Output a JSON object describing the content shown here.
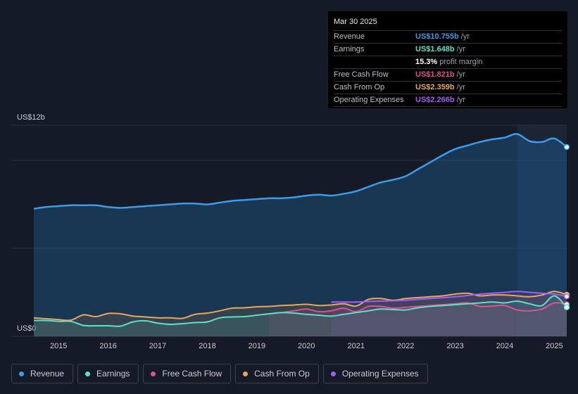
{
  "tooltip": {
    "date": "Mar 30 2025",
    "rows": [
      {
        "label": "Revenue",
        "value": "US$10.755b",
        "unit": "/yr",
        "color": "#3d9be9"
      },
      {
        "label": "Earnings",
        "value": "US$1.648b",
        "unit": "/yr",
        "color": "#5fe0c6"
      },
      {
        "label": "",
        "value": "15.3%",
        "unit": "profit margin",
        "color": "#ffffff"
      },
      {
        "label": "Free Cash Flow",
        "value": "US$1.821b",
        "unit": "/yr",
        "color": "#d9548f"
      },
      {
        "label": "Cash From Op",
        "value": "US$2.359b",
        "unit": "/yr",
        "color": "#e8a85c"
      },
      {
        "label": "Operating Expenses",
        "value": "US$2.266b",
        "unit": "/yr",
        "color": "#a55cf0"
      }
    ]
  },
  "legend": [
    {
      "label": "Revenue",
      "color": "#3d9be9"
    },
    {
      "label": "Earnings",
      "color": "#5fe0c6"
    },
    {
      "label": "Free Cash Flow",
      "color": "#d9548f"
    },
    {
      "label": "Cash From Op",
      "color": "#e8a85c"
    },
    {
      "label": "Operating Expenses",
      "color": "#a55cf0"
    }
  ],
  "chart_data": {
    "type": "area",
    "title": "",
    "ylabel_top": "US$12b",
    "ylabel_bottom": "US$0",
    "ylim": [
      0,
      12
    ],
    "xlim": [
      2014.5,
      2025.25
    ],
    "xticks": [
      {
        "label": "2015",
        "value": 2015
      },
      {
        "label": "2016",
        "value": 2016
      },
      {
        "label": "2017",
        "value": 2017
      },
      {
        "label": "2018",
        "value": 2018
      },
      {
        "label": "2019",
        "value": 2019
      },
      {
        "label": "2020",
        "value": 2020
      },
      {
        "label": "2021",
        "value": 2021
      },
      {
        "label": "2022",
        "value": 2022
      },
      {
        "label": "2023",
        "value": 2023
      },
      {
        "label": "2024",
        "value": 2024
      },
      {
        "label": "2025",
        "value": 2025
      }
    ],
    "highlight_from": 2024.25,
    "series": [
      {
        "name": "Revenue",
        "color": "#3d9be9",
        "x": [
          2014.5,
          2014.75,
          2015.0,
          2015.25,
          2015.5,
          2015.75,
          2016.0,
          2016.25,
          2016.5,
          2016.75,
          2017.0,
          2017.25,
          2017.5,
          2017.75,
          2018.0,
          2018.25,
          2018.5,
          2018.75,
          2019.0,
          2019.25,
          2019.5,
          2019.75,
          2020.0,
          2020.25,
          2020.5,
          2020.75,
          2021.0,
          2021.25,
          2021.5,
          2021.75,
          2022.0,
          2022.25,
          2022.5,
          2022.75,
          2023.0,
          2023.25,
          2023.5,
          2023.75,
          2024.0,
          2024.25,
          2024.5,
          2024.75,
          2025.0,
          2025.25
        ],
        "y": [
          7.25,
          7.35,
          7.4,
          7.45,
          7.45,
          7.45,
          7.35,
          7.3,
          7.35,
          7.4,
          7.45,
          7.5,
          7.55,
          7.55,
          7.5,
          7.6,
          7.7,
          7.75,
          7.8,
          7.85,
          7.85,
          7.9,
          8.0,
          8.05,
          8.0,
          8.1,
          8.25,
          8.5,
          8.75,
          8.9,
          9.1,
          9.5,
          9.9,
          10.3,
          10.65,
          10.85,
          11.05,
          11.2,
          11.3,
          11.5,
          11.1,
          11.05,
          11.25,
          10.76
        ]
      },
      {
        "name": "Earnings",
        "color": "#5fe0c6",
        "x": [
          2014.5,
          2014.75,
          2015.0,
          2015.25,
          2015.5,
          2015.75,
          2016.0,
          2016.25,
          2016.5,
          2016.75,
          2017.0,
          2017.25,
          2017.5,
          2017.75,
          2018.0,
          2018.25,
          2018.5,
          2018.75,
          2019.0,
          2019.25,
          2019.5,
          2019.75,
          2020.0,
          2020.25,
          2020.5,
          2020.75,
          2021.0,
          2021.25,
          2021.5,
          2021.75,
          2022.0,
          2022.25,
          2022.5,
          2022.75,
          2023.0,
          2023.25,
          2023.5,
          2023.75,
          2024.0,
          2024.25,
          2024.5,
          2024.75,
          2025.0,
          2025.25
        ],
        "y": [
          0.9,
          0.9,
          0.85,
          0.85,
          0.62,
          0.6,
          0.6,
          0.58,
          0.82,
          0.88,
          0.75,
          0.68,
          0.72,
          0.78,
          0.82,
          1.05,
          1.1,
          1.12,
          1.2,
          1.28,
          1.35,
          1.32,
          1.25,
          1.2,
          1.15,
          1.25,
          1.35,
          1.45,
          1.55,
          1.52,
          1.5,
          1.62,
          1.7,
          1.75,
          1.8,
          1.85,
          1.9,
          1.95,
          1.9,
          2.0,
          1.85,
          1.75,
          2.3,
          1.65
        ]
      },
      {
        "name": "Free Cash Flow",
        "color": "#d9548f",
        "x": [
          2019.25,
          2019.5,
          2019.75,
          2020.0,
          2020.25,
          2020.5,
          2020.75,
          2021.0,
          2021.25,
          2021.5,
          2021.75,
          2022.0,
          2022.25,
          2022.5,
          2022.75,
          2023.0,
          2023.25,
          2023.5,
          2023.75,
          2024.0,
          2024.25,
          2024.5,
          2024.75,
          2025.0,
          2025.25
        ],
        "y": [
          1.28,
          1.35,
          1.45,
          1.55,
          1.4,
          1.45,
          1.6,
          1.4,
          1.7,
          1.7,
          1.6,
          1.65,
          1.7,
          1.75,
          1.8,
          1.85,
          1.9,
          1.7,
          1.72,
          1.75,
          1.5,
          1.45,
          1.55,
          1.9,
          1.82
        ]
      },
      {
        "name": "Cash From Op",
        "color": "#e8a85c",
        "x": [
          2014.5,
          2014.75,
          2015.0,
          2015.25,
          2015.5,
          2015.75,
          2016.0,
          2016.25,
          2016.5,
          2016.75,
          2017.0,
          2017.25,
          2017.5,
          2017.75,
          2018.0,
          2018.25,
          2018.5,
          2018.75,
          2019.0,
          2019.25,
          2019.5,
          2019.75,
          2020.0,
          2020.25,
          2020.5,
          2020.75,
          2021.0,
          2021.25,
          2021.5,
          2021.75,
          2022.0,
          2022.25,
          2022.5,
          2022.75,
          2023.0,
          2023.25,
          2023.5,
          2023.75,
          2024.0,
          2024.25,
          2024.5,
          2024.75,
          2025.0,
          2025.25
        ],
        "y": [
          1.05,
          1.0,
          0.95,
          0.92,
          1.22,
          1.12,
          1.3,
          1.28,
          1.15,
          1.1,
          1.05,
          1.05,
          1.02,
          1.25,
          1.32,
          1.45,
          1.6,
          1.62,
          1.68,
          1.7,
          1.75,
          1.78,
          1.82,
          1.75,
          1.78,
          1.85,
          1.72,
          2.1,
          2.15,
          2.05,
          2.15,
          2.2,
          2.25,
          2.3,
          2.4,
          2.45,
          2.3,
          2.35,
          2.35,
          2.3,
          2.25,
          2.35,
          2.55,
          2.36
        ]
      },
      {
        "name": "Operating Expenses",
        "color": "#a55cf0",
        "x": [
          2020.5,
          2020.75,
          2021.0,
          2021.25,
          2021.5,
          2021.75,
          2022.0,
          2022.25,
          2022.5,
          2022.75,
          2023.0,
          2023.25,
          2023.5,
          2023.75,
          2024.0,
          2024.25,
          2024.5,
          2024.75,
          2025.0,
          2025.25
        ],
        "y": [
          1.95,
          1.95,
          1.95,
          1.98,
          2.0,
          2.02,
          2.05,
          2.1,
          2.15,
          2.2,
          2.25,
          2.32,
          2.4,
          2.45,
          2.5,
          2.55,
          2.5,
          2.45,
          2.4,
          2.27
        ]
      }
    ]
  }
}
